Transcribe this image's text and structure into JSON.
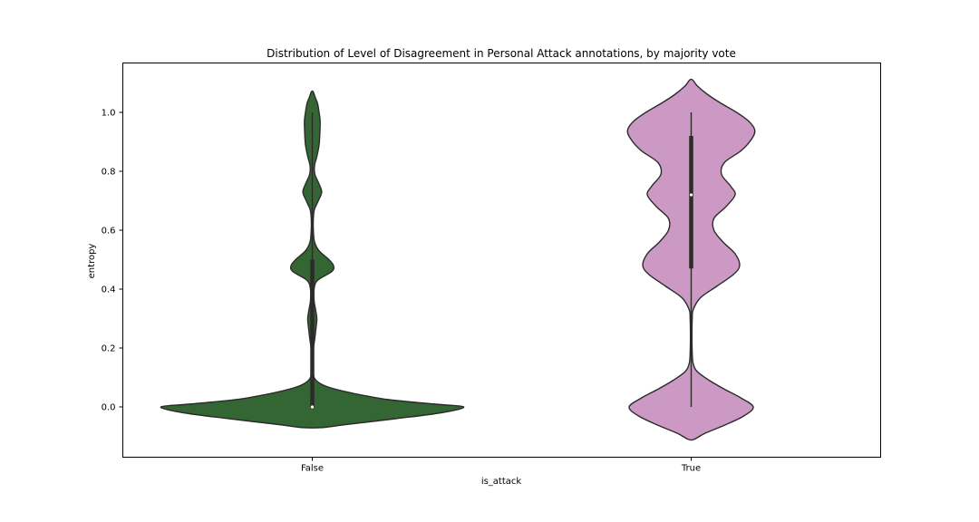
{
  "chart_data": {
    "type": "violin",
    "title": "Distribution of Level of Disagreement in Personal Attack annotations, by majority vote",
    "xlabel": "is_attack",
    "ylabel": "entropy",
    "ylim": [
      -0.17,
      1.17
    ],
    "yticks": [
      0.0,
      0.2,
      0.4,
      0.6,
      0.8,
      1.0
    ],
    "ytick_labels": [
      "0.0",
      "0.2",
      "0.4",
      "0.6",
      "0.8",
      "1.0"
    ],
    "categories": [
      "False",
      "True"
    ],
    "grid": false,
    "series": [
      {
        "category": "False",
        "color": "#336633",
        "quartiles": {
          "min": 0.0,
          "q1": 0.0,
          "median": 0.0,
          "q3": 0.5,
          "max": 1.0
        },
        "density_profile": [
          [
            -0.07,
            0.07
          ],
          [
            -0.06,
            0.22
          ],
          [
            -0.04,
            0.55
          ],
          [
            -0.02,
            0.85
          ],
          [
            0.0,
            1.0
          ],
          [
            0.01,
            0.8
          ],
          [
            0.025,
            0.5
          ],
          [
            0.045,
            0.28
          ],
          [
            0.065,
            0.12
          ],
          [
            0.08,
            0.05
          ],
          [
            0.1,
            0.012
          ],
          [
            0.13,
            0.008
          ],
          [
            0.17,
            0.007
          ],
          [
            0.2,
            0.008
          ],
          [
            0.23,
            0.016
          ],
          [
            0.27,
            0.025
          ],
          [
            0.3,
            0.03
          ],
          [
            0.33,
            0.022
          ],
          [
            0.36,
            0.012
          ],
          [
            0.4,
            0.012
          ],
          [
            0.43,
            0.035
          ],
          [
            0.46,
            0.13
          ],
          [
            0.48,
            0.14
          ],
          [
            0.5,
            0.11
          ],
          [
            0.53,
            0.045
          ],
          [
            0.56,
            0.015
          ],
          [
            0.6,
            0.007
          ],
          [
            0.64,
            0.007
          ],
          [
            0.67,
            0.014
          ],
          [
            0.7,
            0.04
          ],
          [
            0.73,
            0.062
          ],
          [
            0.76,
            0.042
          ],
          [
            0.79,
            0.017
          ],
          [
            0.82,
            0.015
          ],
          [
            0.85,
            0.03
          ],
          [
            0.89,
            0.045
          ],
          [
            0.93,
            0.05
          ],
          [
            0.97,
            0.052
          ],
          [
            1.0,
            0.045
          ],
          [
            1.03,
            0.035
          ],
          [
            1.05,
            0.02
          ],
          [
            1.07,
            0.006
          ]
        ]
      },
      {
        "category": "True",
        "color": "#cc99c4",
        "quartiles": {
          "min": 0.0,
          "q1": 0.47,
          "median": 0.72,
          "q3": 0.92,
          "max": 1.0
        },
        "density_profile": [
          [
            -0.11,
            0.02
          ],
          [
            -0.09,
            0.09
          ],
          [
            -0.06,
            0.23
          ],
          [
            -0.03,
            0.35
          ],
          [
            0.0,
            0.41
          ],
          [
            0.03,
            0.33
          ],
          [
            0.06,
            0.22
          ],
          [
            0.09,
            0.12
          ],
          [
            0.12,
            0.04
          ],
          [
            0.15,
            0.012
          ],
          [
            0.2,
            0.006
          ],
          [
            0.25,
            0.005
          ],
          [
            0.3,
            0.007
          ],
          [
            0.33,
            0.013
          ],
          [
            0.37,
            0.06
          ],
          [
            0.41,
            0.17
          ],
          [
            0.45,
            0.28
          ],
          [
            0.48,
            0.32
          ],
          [
            0.52,
            0.29
          ],
          [
            0.56,
            0.21
          ],
          [
            0.6,
            0.15
          ],
          [
            0.64,
            0.15
          ],
          [
            0.68,
            0.23
          ],
          [
            0.72,
            0.29
          ],
          [
            0.75,
            0.26
          ],
          [
            0.79,
            0.2
          ],
          [
            0.83,
            0.22
          ],
          [
            0.87,
            0.33
          ],
          [
            0.91,
            0.4
          ],
          [
            0.94,
            0.42
          ],
          [
            0.97,
            0.38
          ],
          [
            1.0,
            0.3
          ],
          [
            1.03,
            0.2
          ],
          [
            1.06,
            0.11
          ],
          [
            1.09,
            0.04
          ],
          [
            1.11,
            0.01
          ]
        ]
      }
    ]
  }
}
